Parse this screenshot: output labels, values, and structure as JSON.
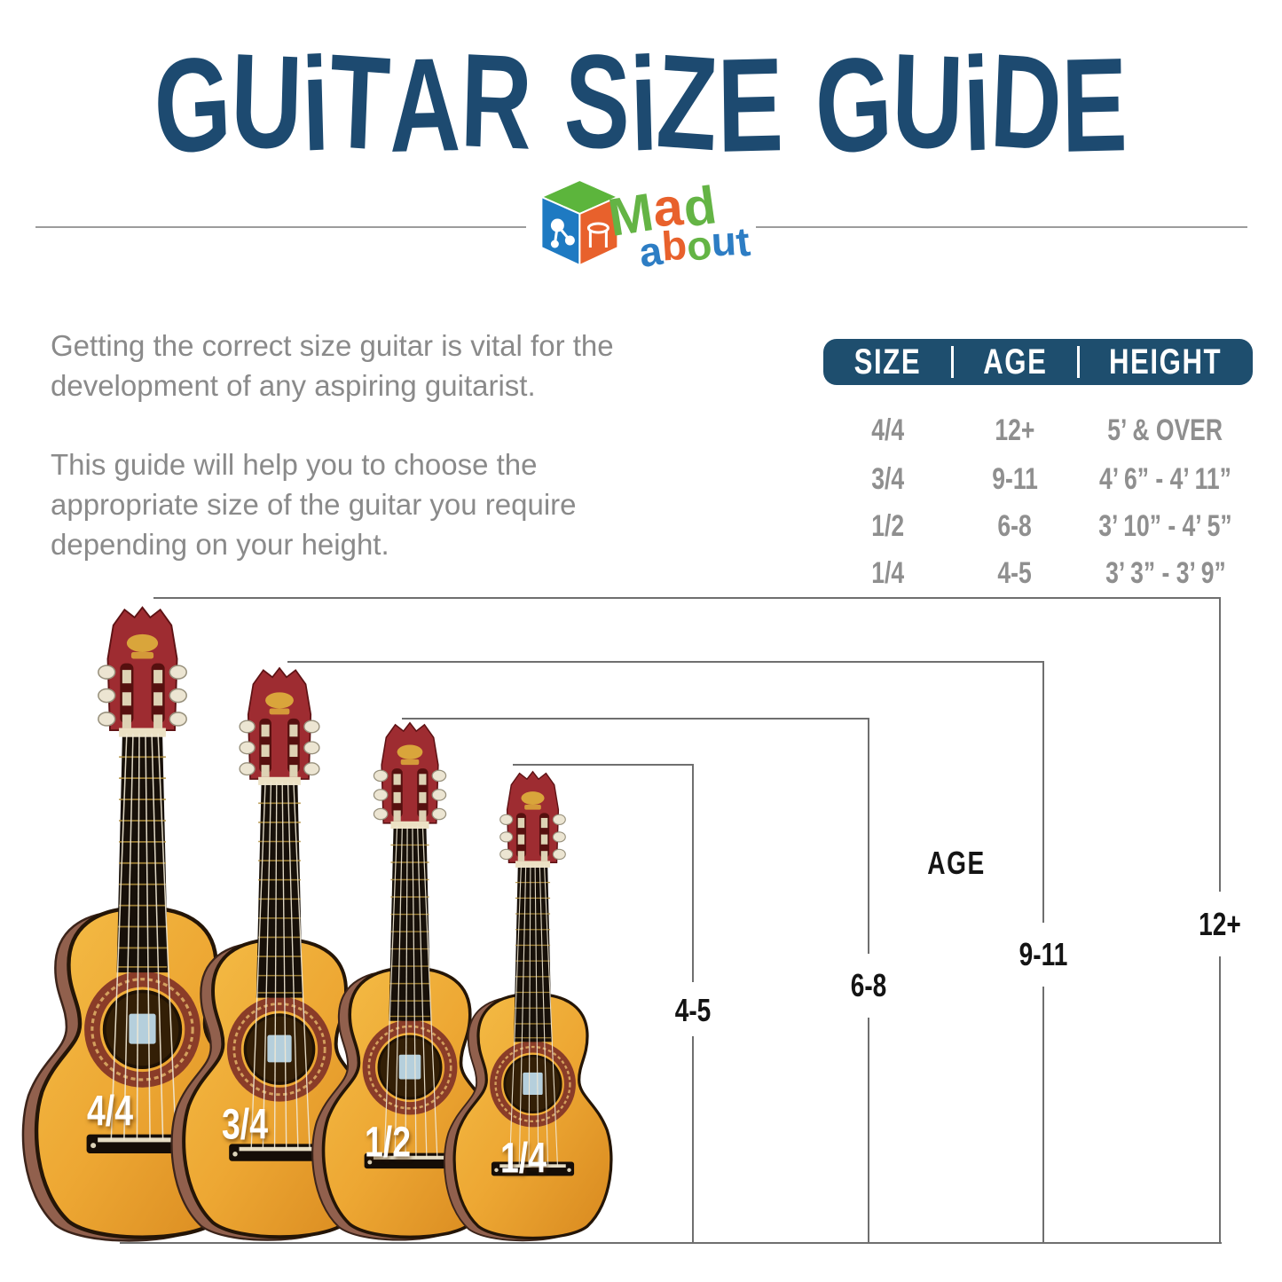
{
  "title": "GUiTAR SiZE GUiDE",
  "logo": {
    "mad": "Mad",
    "about": "about",
    "mad_colors": [
      "#64b445",
      "#e8612c",
      "#64b445"
    ],
    "about_colors": [
      "#2d7dc4",
      "#e8612c",
      "#64b445",
      "#2d7dc4",
      "#2d7dc4"
    ]
  },
  "intro": {
    "para1": "Getting the correct size guitar is vital for the development of any aspiring guitarist.",
    "para2": "This guide will help you to choose the appropriate size of the guitar you require depending on your height."
  },
  "size_table": {
    "headers": [
      "SIZE",
      "AGE",
      "HEIGHT"
    ],
    "rows": [
      {
        "size": "4/4",
        "age": "12+",
        "height": "5’ & OVER"
      },
      {
        "size": "3/4",
        "age": "9-11",
        "height": "4’ 6” - 4’ 11”"
      },
      {
        "size": "1/2",
        "age": "6-8",
        "height": "3’ 10” - 4’ 5”"
      },
      {
        "size": "1/4",
        "age": "4-5",
        "height": "3’ 3” - 3’ 9”"
      }
    ]
  },
  "diagram": {
    "age_title": "AGE",
    "groups": [
      {
        "size": "4/4",
        "age": "12+"
      },
      {
        "size": "3/4",
        "age": "9-11"
      },
      {
        "size": "1/2",
        "age": "6-8"
      },
      {
        "size": "1/4",
        "age": "4-5"
      }
    ]
  },
  "colors": {
    "navy_title": "#1d4a70",
    "table_header_bg": "#1e4e6e",
    "body_text": "#8a8a8a",
    "table_text": "#8f8f8f",
    "bracket_line": "#6f6f6f",
    "bracket_label": "#141414",
    "guitar_body_yellow": "#eda733",
    "guitar_neck_red": "#9e2c31"
  }
}
